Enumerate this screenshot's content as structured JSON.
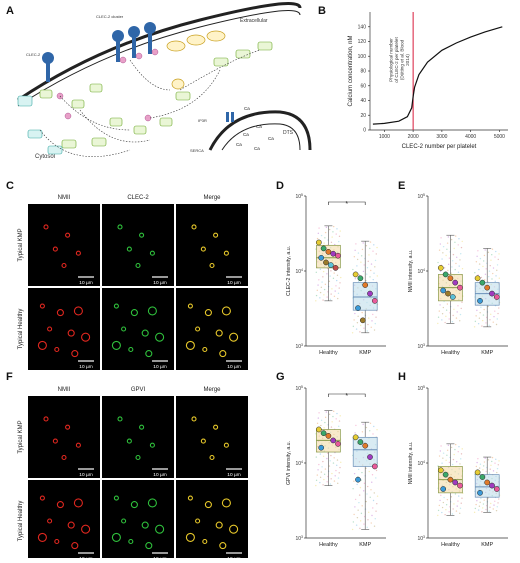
{
  "panels": {
    "A": {
      "label": "A",
      "texts": [
        "Extracellular",
        "Cytosol",
        "CLEC-2",
        "CLEC-2 cluster",
        "DTS",
        "SERCA",
        "IP3R"
      ]
    },
    "B": {
      "label": "B",
      "annotation": "Physiological number of CLEC-2 per platelet (Dütting et al. Blood 2014)"
    },
    "C": {
      "label": "C",
      "cols": [
        "NMII",
        "CLEC-2",
        "Merge"
      ],
      "rows": [
        "Typical KMP",
        "Typical Healthy"
      ],
      "scale": "10 µm"
    },
    "D": {
      "label": "D"
    },
    "E": {
      "label": "E"
    },
    "F": {
      "label": "F",
      "cols": [
        "NMII",
        "GPVI",
        "Merge"
      ],
      "rows": [
        "Typical KMP",
        "Typical Healthy"
      ],
      "scale": "10 µm"
    },
    "G": {
      "label": "G"
    },
    "H": {
      "label": "H"
    }
  },
  "chart_data": [
    {
      "panel": "B",
      "type": "line",
      "xlabel": "CLEC-2 number per platelet",
      "ylabel": "Calcium concentration, nM",
      "xlim": [
        500,
        5300
      ],
      "ylim": [
        0,
        160
      ],
      "xticks": [
        1000,
        2000,
        3000,
        4000,
        5000
      ],
      "yticks": [
        0,
        20,
        40,
        60,
        80,
        100,
        120,
        140
      ],
      "vline": 2000,
      "x": [
        600,
        1000,
        1500,
        1800,
        1950,
        2000,
        2050,
        2200,
        2500,
        3000,
        3500,
        4000,
        4500,
        5100
      ],
      "y": [
        8,
        9,
        12,
        18,
        30,
        45,
        58,
        75,
        92,
        108,
        118,
        126,
        133,
        140
      ]
    },
    {
      "panel": "D",
      "type": "scatter",
      "ylabel": "CLEC-2 intensity, a.u.",
      "categories": [
        "Healthy",
        "KMP"
      ],
      "yscale": "log",
      "ylim": [
        1000,
        100000
      ],
      "significance": "*",
      "series": [
        {
          "name": "Healthy",
          "values": [
            24000,
            20000,
            18000,
            17000,
            16000,
            15000,
            13000,
            12000,
            11000
          ]
        },
        {
          "name": "KMP",
          "values": [
            9000,
            8000,
            6500,
            5000,
            4000,
            3200,
            2200
          ]
        }
      ],
      "box": [
        {
          "q1": 11000,
          "median": 15000,
          "q3": 22000,
          "wlo": 4000,
          "whi": 40000
        },
        {
          "q1": 3000,
          "median": 4500,
          "q3": 7000,
          "wlo": 1500,
          "whi": 25000
        }
      ]
    },
    {
      "panel": "E",
      "type": "scatter",
      "ylabel": "NMII intensity, a.u.",
      "categories": [
        "Healthy",
        "KMP"
      ],
      "yscale": "log",
      "ylim": [
        1000,
        100000
      ],
      "series": [
        {
          "name": "Healthy",
          "values": [
            11000,
            9000,
            8000,
            7000,
            6000,
            5500,
            5000,
            4500
          ]
        },
        {
          "name": "KMP",
          "values": [
            8000,
            7000,
            6000,
            5000,
            4500,
            4000
          ]
        }
      ],
      "box": [
        {
          "q1": 4000,
          "median": 6000,
          "q3": 9000,
          "wlo": 2000,
          "whi": 30000
        },
        {
          "q1": 3500,
          "median": 5000,
          "q3": 7000,
          "wlo": 1800,
          "whi": 20000
        }
      ]
    },
    {
      "panel": "G",
      "type": "scatter",
      "ylabel": "GPVI intensity, a.u.",
      "categories": [
        "Healthy",
        "KMP"
      ],
      "yscale": "log",
      "ylim": [
        1000,
        100000
      ],
      "significance": "*",
      "series": [
        {
          "name": "Healthy",
          "values": [
            28000,
            25000,
            23000,
            20000,
            18000,
            16000
          ]
        },
        {
          "name": "KMP",
          "values": [
            22000,
            19000,
            17000,
            12000,
            9000,
            6000
          ]
        }
      ],
      "box": [
        {
          "q1": 14000,
          "median": 20000,
          "q3": 28000,
          "wlo": 5000,
          "whi": 50000
        },
        {
          "q1": 9000,
          "median": 15000,
          "q3": 22000,
          "wlo": 1300,
          "whi": 35000
        }
      ]
    },
    {
      "panel": "H",
      "type": "scatter",
      "ylabel": "NMII intensity, a.u.",
      "categories": [
        "Healthy",
        "KMP"
      ],
      "yscale": "log",
      "ylim": [
        1000,
        100000
      ],
      "series": [
        {
          "name": "Healthy",
          "values": [
            8000,
            7000,
            6000,
            5500,
            5000,
            4500
          ]
        },
        {
          "name": "KMP",
          "values": [
            7500,
            6500,
            5500,
            5000,
            4500,
            4000
          ]
        }
      ],
      "box": [
        {
          "q1": 4000,
          "median": 6000,
          "q3": 9000,
          "wlo": 2000,
          "whi": 18000
        },
        {
          "q1": 3500,
          "median": 4800,
          "q3": 7000,
          "wlo": 2200,
          "whi": 12000
        }
      ]
    }
  ],
  "colors": {
    "red": "#e0271f",
    "green": "#2fc03c",
    "yellow": "#e6c72a",
    "vline": "#d81b3b"
  }
}
